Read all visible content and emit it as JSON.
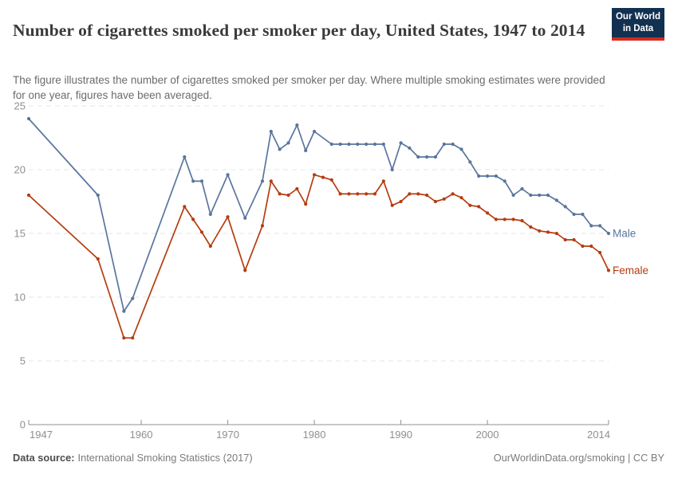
{
  "header": {
    "title": "Number of cigarettes smoked per smoker per day, United States, 1947 to 2014",
    "subtitle": "The figure illustrates the number of cigarettes smoked per smoker per day. Where multiple smoking estimates were provided for one year, figures have been averaged.",
    "logo": {
      "line1": "Our World",
      "line2": "in Data",
      "background_color": "#123050",
      "accent_color": "#d12c1f"
    }
  },
  "chart_data": {
    "type": "line",
    "title": "Number of cigarettes smoked per smoker per day, United States, 1947 to 2014",
    "xlabel": "",
    "ylabel": "",
    "x_ticks": [
      1947,
      1960,
      1970,
      1980,
      1990,
      2000,
      2014
    ],
    "y_ticks": [
      0,
      5,
      10,
      15,
      20,
      25
    ],
    "xlim": [
      1947,
      2014
    ],
    "ylim": [
      0,
      25
    ],
    "grid": "horizontal-dashed",
    "legend_position": "end-of-line-labels",
    "colors": {
      "grid": "#e4e4e4",
      "axis": "#929292",
      "tick_text": "#8f8f8f"
    },
    "series": [
      {
        "name": "Male",
        "color": "#5a759e",
        "points": [
          [
            1947,
            24
          ],
          [
            1955,
            18
          ],
          [
            1958,
            8.9
          ],
          [
            1959,
            9.9
          ],
          [
            1965,
            21
          ],
          [
            1966,
            19.1
          ],
          [
            1967,
            19.1
          ],
          [
            1968,
            16.5
          ],
          [
            1970,
            19.6
          ],
          [
            1972,
            16.2
          ],
          [
            1974,
            19.1
          ],
          [
            1975,
            23
          ],
          [
            1976,
            21.6
          ],
          [
            1977,
            22.1
          ],
          [
            1978,
            23.5
          ],
          [
            1979,
            21.5
          ],
          [
            1980,
            23
          ],
          [
            1982,
            22
          ],
          [
            1983,
            22
          ],
          [
            1984,
            22
          ],
          [
            1985,
            22
          ],
          [
            1986,
            22
          ],
          [
            1987,
            22
          ],
          [
            1988,
            22
          ],
          [
            1989,
            20
          ],
          [
            1990,
            22.1
          ],
          [
            1991,
            21.7
          ],
          [
            1992,
            21
          ],
          [
            1993,
            21
          ],
          [
            1994,
            21
          ],
          [
            1995,
            22
          ],
          [
            1996,
            22
          ],
          [
            1997,
            21.6
          ],
          [
            1998,
            20.6
          ],
          [
            1999,
            19.5
          ],
          [
            2000,
            19.5
          ],
          [
            2001,
            19.5
          ],
          [
            2002,
            19.1
          ],
          [
            2003,
            18
          ],
          [
            2004,
            18.5
          ],
          [
            2005,
            18
          ],
          [
            2006,
            18
          ],
          [
            2007,
            18
          ],
          [
            2008,
            17.6
          ],
          [
            2009,
            17.1
          ],
          [
            2010,
            16.5
          ],
          [
            2011,
            16.5
          ],
          [
            2012,
            15.6
          ],
          [
            2013,
            15.6
          ],
          [
            2014,
            15
          ]
        ]
      },
      {
        "name": "Female",
        "color": "#b53c10",
        "points": [
          [
            1947,
            18
          ],
          [
            1955,
            13
          ],
          [
            1958,
            6.8
          ],
          [
            1959,
            6.8
          ],
          [
            1965,
            17.1
          ],
          [
            1966,
            16.1
          ],
          [
            1967,
            15.1
          ],
          [
            1968,
            14
          ],
          [
            1970,
            16.3
          ],
          [
            1972,
            12.1
          ],
          [
            1974,
            15.6
          ],
          [
            1975,
            19.1
          ],
          [
            1976,
            18.1
          ],
          [
            1977,
            18
          ],
          [
            1978,
            18.5
          ],
          [
            1979,
            17.3
          ],
          [
            1980,
            19.6
          ],
          [
            1981,
            19.4
          ],
          [
            1982,
            19.2
          ],
          [
            1983,
            18.1
          ],
          [
            1984,
            18.1
          ],
          [
            1985,
            18.1
          ],
          [
            1986,
            18.1
          ],
          [
            1987,
            18.1
          ],
          [
            1988,
            19.1
          ],
          [
            1989,
            17.2
          ],
          [
            1990,
            17.5
          ],
          [
            1991,
            18.1
          ],
          [
            1992,
            18.1
          ],
          [
            1993,
            18
          ],
          [
            1994,
            17.5
          ],
          [
            1995,
            17.7
          ],
          [
            1996,
            18.1
          ],
          [
            1997,
            17.8
          ],
          [
            1998,
            17.2
          ],
          [
            1999,
            17.1
          ],
          [
            2000,
            16.6
          ],
          [
            2001,
            16.1
          ],
          [
            2002,
            16.1
          ],
          [
            2003,
            16.1
          ],
          [
            2004,
            16
          ],
          [
            2005,
            15.5
          ],
          [
            2006,
            15.2
          ],
          [
            2007,
            15.1
          ],
          [
            2008,
            15
          ],
          [
            2009,
            14.5
          ],
          [
            2010,
            14.5
          ],
          [
            2011,
            14
          ],
          [
            2012,
            14
          ],
          [
            2013,
            13.5
          ],
          [
            2014,
            12.1
          ]
        ]
      }
    ]
  },
  "footer": {
    "source_label": "Data source:",
    "source_value": "International Smoking Statistics (2017)",
    "attribution": "OurWorldinData.org/smoking | CC BY"
  }
}
